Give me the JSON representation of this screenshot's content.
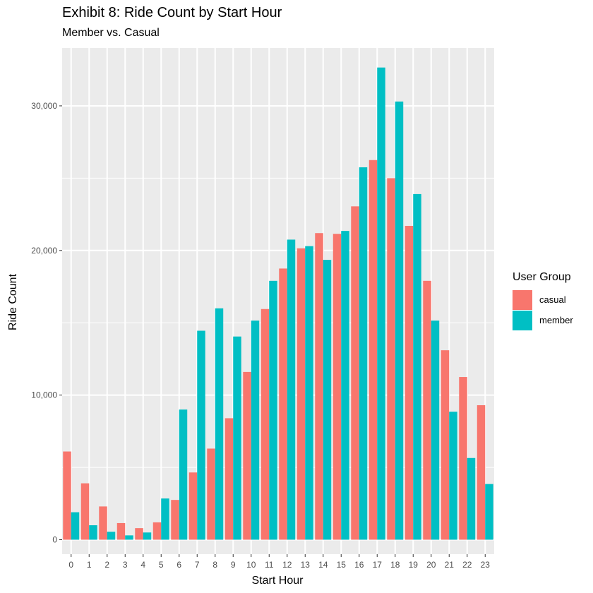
{
  "chart_data": {
    "type": "bar",
    "title": "Exhibit 8: Ride Count by Start Hour",
    "subtitle": "Member vs. Casual",
    "xlabel": "Start Hour",
    "ylabel": "Ride Count",
    "ylim": [
      -1000,
      34000
    ],
    "yticks": [
      0,
      10000,
      20000,
      30000
    ],
    "ytick_labels": [
      "0",
      "10,000",
      "20,000",
      "30,000"
    ],
    "categories": [
      "0",
      "1",
      "2",
      "3",
      "4",
      "5",
      "6",
      "7",
      "8",
      "9",
      "10",
      "11",
      "12",
      "13",
      "14",
      "15",
      "16",
      "17",
      "18",
      "19",
      "20",
      "21",
      "22",
      "23"
    ],
    "grid": true,
    "legend": {
      "title": "User Group",
      "position": "right"
    },
    "series": [
      {
        "name": "casual",
        "color": "#F8766D",
        "values": [
          6100,
          3900,
          2300,
          1150,
          800,
          1200,
          2750,
          4650,
          6300,
          8400,
          11600,
          15950,
          18750,
          20150,
          21200,
          21150,
          23050,
          26250,
          25000,
          21700,
          17900,
          13100,
          11250,
          9300
        ]
      },
      {
        "name": "member",
        "color": "#00BFC4",
        "values": [
          1900,
          1000,
          550,
          300,
          500,
          2850,
          9000,
          14450,
          16000,
          14050,
          15150,
          17900,
          20750,
          20300,
          19350,
          21350,
          25750,
          32650,
          30300,
          23900,
          15150,
          8850,
          5650,
          3850
        ]
      }
    ]
  },
  "page": {
    "background": "#ffffff",
    "panel_background": "#EBEBEB",
    "grid_color": "#ffffff"
  }
}
